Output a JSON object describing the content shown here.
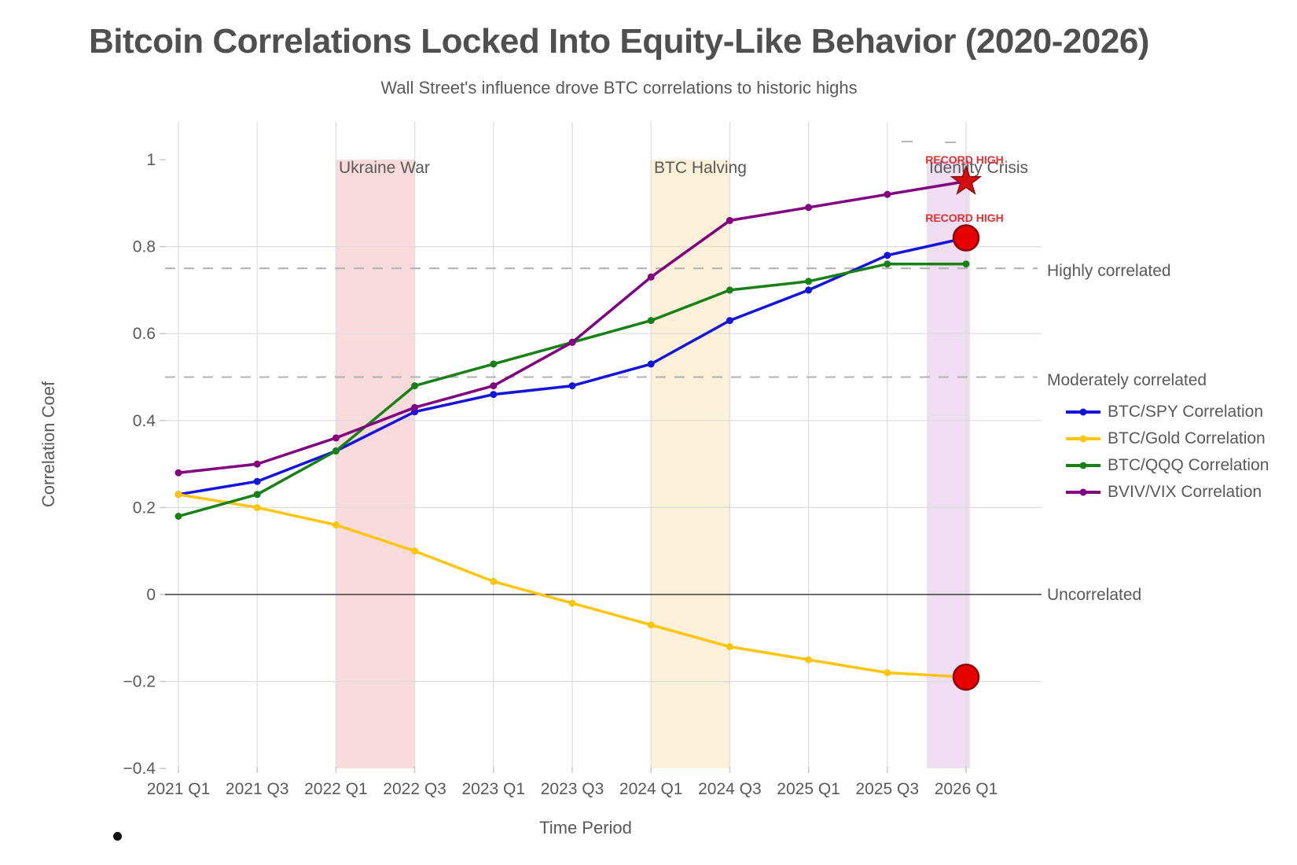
{
  "header": {
    "title": "Bitcoin Correlations Locked Into Equity-Like Behavior (2020-2026)",
    "subtitle": "Wall Street's influence drove BTC correlations to historic highs"
  },
  "chart_data": {
    "type": "line",
    "title": "Bitcoin Correlations Locked Into Equity-Like Behavior (2020-2026)",
    "subtitle": "Wall Street's influence drove BTC correlations to historic highs",
    "xlabel": "Time Period",
    "ylabel": "Correlation Coef",
    "grid": true,
    "legend_position": "right",
    "ylim": [
      -0.4,
      1.09
    ],
    "categories": [
      "2021 Q1",
      "2021 Q3",
      "2022 Q1",
      "2022 Q3",
      "2023 Q1",
      "2023 Q3",
      "2024 Q1",
      "2024 Q3",
      "2025 Q1",
      "2025 Q3",
      "2026 Q1"
    ],
    "yticks": [
      {
        "label": "1",
        "value": 1
      },
      {
        "label": "0.8",
        "value": 0.8
      },
      {
        "label": "0.6",
        "value": 0.6
      },
      {
        "label": "0.4",
        "value": 0.4
      },
      {
        "label": "0.2",
        "value": 0.2
      },
      {
        "label": "0",
        "value": 0
      },
      {
        "label": "−0.2",
        "value": -0.2
      },
      {
        "label": "−0.4",
        "value": -0.4
      }
    ],
    "series": [
      {
        "name": "BTC/SPY Correlation",
        "color": "#1414dc",
        "values": [
          0.23,
          0.26,
          0.33,
          0.42,
          0.46,
          0.48,
          0.53,
          0.63,
          0.7,
          0.78,
          0.82
        ]
      },
      {
        "name": "BTC/Gold Correlation",
        "color": "#ffc40c",
        "values": [
          0.23,
          0.2,
          0.16,
          0.1,
          0.03,
          -0.02,
          -0.07,
          -0.12,
          -0.15,
          -0.18,
          -0.19
        ]
      },
      {
        "name": "BTC/QQQ Correlation",
        "color": "#178017",
        "values": [
          0.18,
          0.23,
          0.33,
          0.48,
          0.53,
          0.58,
          0.63,
          0.7,
          0.72,
          0.76,
          0.76
        ]
      },
      {
        "name": "BVIV/VIX Correlation",
        "color": "#800080",
        "values": [
          0.28,
          0.3,
          0.36,
          0.43,
          0.48,
          0.58,
          0.73,
          0.86,
          0.89,
          0.92,
          0.95
        ]
      }
    ],
    "thresholds": [
      {
        "label": "Highly correlated",
        "value": 0.75,
        "style": "dashed",
        "color": "#b0b0b0"
      },
      {
        "label": "Moderately correlated",
        "value": 0.5,
        "style": "dashed",
        "color": "#b0b0b0"
      },
      {
        "label": "Uncorrelated",
        "value": 0,
        "style": "solid",
        "color": "#3c3c3c"
      }
    ],
    "bands": [
      {
        "label": "Ukraine War",
        "from": "2022 Q1",
        "to": "2022 Q3",
        "from_i": 2,
        "to_i": 3,
        "color": "#fadbdb"
      },
      {
        "label": "BTC Halving",
        "from": "2024 Q1",
        "to": "2024 Q3",
        "from_i": 6,
        "to_i": 7,
        "color": "#fcf0d8"
      },
      {
        "label": "Identity Crisis",
        "from": "2025 Q4",
        "to": "2026 Q1",
        "from_i": 9.5,
        "to_i": 10.05,
        "color": "#efdef2"
      }
    ],
    "annotations": [
      {
        "text": "RECORD HIGH",
        "x": "2026 Q1",
        "y": 0.95,
        "marker": "star",
        "marker_color": "#d40f0f",
        "text_color": "#e03030"
      },
      {
        "text": "RECORD HIGH",
        "x": "2026 Q1",
        "y": 0.82,
        "marker": "circle",
        "marker_color": "#e60000",
        "text_color": "#e03030"
      },
      {
        "text": "",
        "x": "2026 Q1",
        "y": -0.19,
        "marker": "circle",
        "marker_color": "#e60000",
        "text_color": "#e03030"
      }
    ]
  }
}
